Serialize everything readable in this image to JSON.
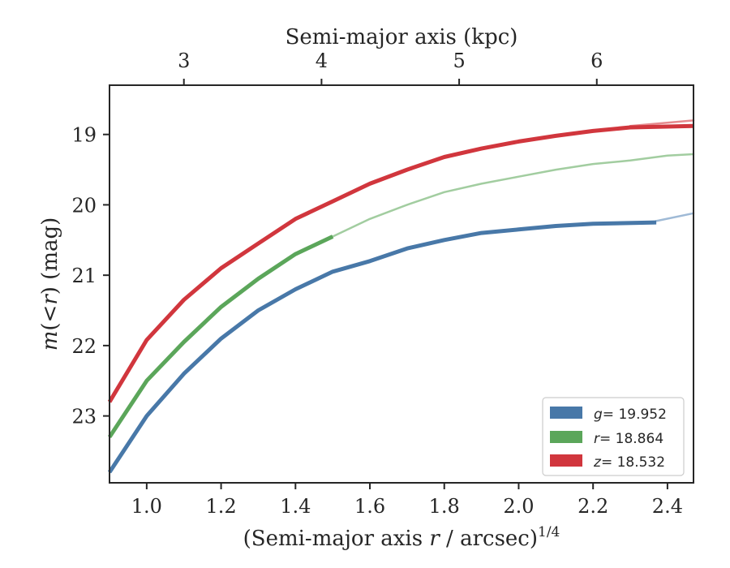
{
  "chart_data": {
    "type": "line",
    "xlabel_prefix": "(Semi-major axis ",
    "xlabel_var": "r",
    "xlabel_suffix": " / arcsec)",
    "xlabel_sup": "1/4",
    "ylabel_var": "m",
    "ylabel_mid": "(<",
    "ylabel_var2": "r",
    "ylabel_suffix": ") (mag)",
    "top_xlabel": "Semi-major axis (kpc)",
    "xlim": [
      0.9,
      2.47
    ],
    "ylim": [
      23.95,
      18.3
    ],
    "y_inverted": true,
    "x_ticks": [
      1.0,
      1.2,
      1.4,
      1.6,
      1.8,
      2.0,
      2.2,
      2.4
    ],
    "x_tick_labels": [
      "1.0",
      "1.2",
      "1.4",
      "1.6",
      "1.8",
      "2.0",
      "2.2",
      "2.4"
    ],
    "y_ticks": [
      19,
      20,
      21,
      22,
      23
    ],
    "y_tick_labels": [
      "19",
      "20",
      "21",
      "22",
      "23"
    ],
    "top_ticks": [
      {
        "label": "3",
        "x": 1.1
      },
      {
        "label": "4",
        "x": 1.47
      },
      {
        "label": "5",
        "x": 1.84
      },
      {
        "label": "6",
        "x": 2.21
      }
    ],
    "legend_position": "lower-right",
    "series": [
      {
        "name_var": "g",
        "name_value": "= 19.952",
        "color": "#4878a8",
        "model_color": "#9fbad6",
        "data": [
          [
            0.9,
            23.8
          ],
          [
            1.0,
            23.0
          ],
          [
            1.1,
            22.4
          ],
          [
            1.2,
            21.9
          ],
          [
            1.3,
            21.5
          ],
          [
            1.4,
            21.2
          ],
          [
            1.5,
            20.95
          ],
          [
            1.6,
            20.8
          ],
          [
            1.7,
            20.62
          ],
          [
            1.8,
            20.5
          ],
          [
            1.9,
            20.4
          ],
          [
            2.0,
            20.35
          ],
          [
            2.1,
            20.3
          ],
          [
            2.2,
            20.27
          ],
          [
            2.37,
            20.25
          ]
        ],
        "model": [
          [
            2.37,
            20.23
          ],
          [
            2.47,
            20.12
          ]
        ]
      },
      {
        "name_var": "r",
        "name_value": "= 18.864",
        "color": "#5ba65a",
        "model_color": "#a2cda0",
        "data": [
          [
            0.9,
            23.3
          ],
          [
            1.0,
            22.5
          ],
          [
            1.1,
            21.95
          ],
          [
            1.2,
            21.45
          ],
          [
            1.3,
            21.05
          ],
          [
            1.4,
            20.7
          ],
          [
            1.5,
            20.45
          ]
        ],
        "model": [
          [
            1.5,
            20.45
          ],
          [
            1.6,
            20.2
          ],
          [
            1.7,
            20.0
          ],
          [
            1.8,
            19.82
          ],
          [
            1.9,
            19.7
          ],
          [
            2.0,
            19.6
          ],
          [
            2.1,
            19.5
          ],
          [
            2.2,
            19.42
          ],
          [
            2.3,
            19.37
          ],
          [
            2.4,
            19.3
          ],
          [
            2.47,
            19.28
          ]
        ]
      },
      {
        "name_var": "z",
        "name_value": "= 18.532",
        "color": "#d1363d",
        "model_color": "#e68a8e",
        "data": [
          [
            0.9,
            22.8
          ],
          [
            1.0,
            21.92
          ],
          [
            1.1,
            21.35
          ],
          [
            1.2,
            20.9
          ],
          [
            1.3,
            20.55
          ],
          [
            1.4,
            20.2
          ],
          [
            1.5,
            19.95
          ],
          [
            1.6,
            19.7
          ],
          [
            1.7,
            19.5
          ],
          [
            1.8,
            19.32
          ],
          [
            1.9,
            19.2
          ],
          [
            2.0,
            19.1
          ],
          [
            2.1,
            19.02
          ],
          [
            2.2,
            18.95
          ],
          [
            2.3,
            18.9
          ],
          [
            2.47,
            18.88
          ]
        ],
        "model": [
          [
            2.3,
            18.88
          ],
          [
            2.47,
            18.8
          ]
        ]
      }
    ]
  }
}
